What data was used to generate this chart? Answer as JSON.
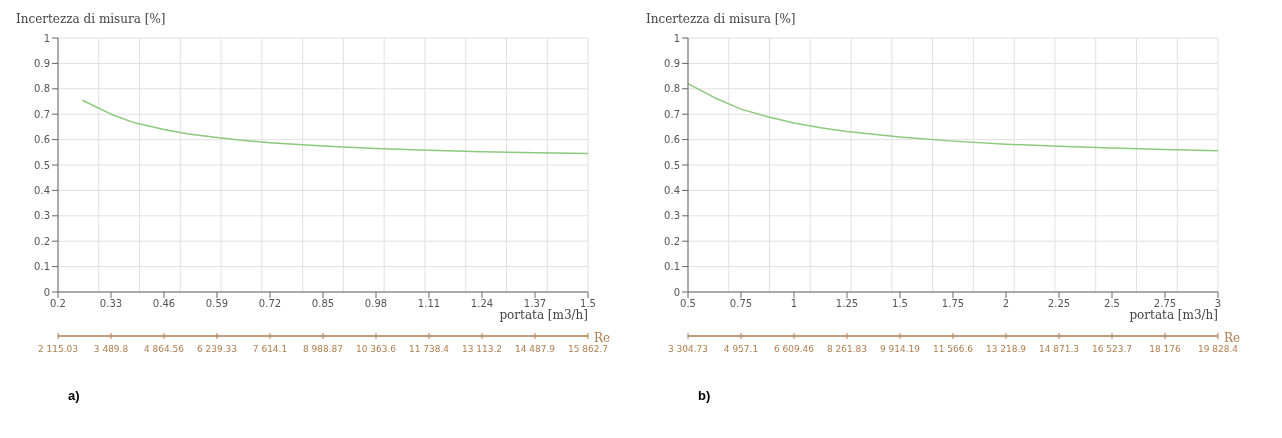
{
  "chart_data": [
    {
      "type": "line",
      "ylabel": "Incertezza di misura [%]",
      "xlabel": "portata [m3/h]",
      "x2label": "Re",
      "annotations": [
        "a)"
      ],
      "grid": true,
      "marker": "none",
      "line_style": "solid",
      "x": [
        0.26,
        0.33,
        0.39,
        0.46,
        0.52,
        0.59,
        0.65,
        0.72,
        0.85,
        0.98,
        1.11,
        1.24,
        1.37,
        1.5
      ],
      "series": [
        {
          "color": "#8cc97c",
          "values": [
            0.755,
            0.7,
            0.665,
            0.64,
            0.622,
            0.608,
            0.597,
            0.588,
            0.575,
            0.565,
            0.558,
            0.552,
            0.548,
            0.545
          ]
        }
      ],
      "xlim": [
        0.2,
        1.5
      ],
      "xticks": [
        0.2,
        0.33,
        0.46,
        0.59,
        0.72,
        0.85,
        0.98,
        1.11,
        1.24,
        1.37,
        1.5
      ],
      "ylim": [
        0,
        1
      ],
      "yticks": [
        0,
        0.1,
        0.2,
        0.3,
        0.4,
        0.5,
        0.6,
        0.7,
        0.8,
        0.9,
        1
      ],
      "x2lim": [
        2115.03,
        15862.7
      ],
      "x2ticks": [
        {
          "value": 2115.03,
          "label": "2 115.03"
        },
        {
          "value": 3489.8,
          "label": "3 489.8"
        },
        {
          "value": 4864.56,
          "label": "4 864.56"
        },
        {
          "value": 6239.33,
          "label": "6 239.33"
        },
        {
          "value": 7614.1,
          "label": "7 614.1"
        },
        {
          "value": 8988.87,
          "label": "8 988.87"
        },
        {
          "value": 10363.6,
          "label": "10 363.6"
        },
        {
          "value": 11738.4,
          "label": "11 738.4"
        },
        {
          "value": 13113.2,
          "label": "13 113.2"
        },
        {
          "value": 14487.9,
          "label": "14 487.9"
        },
        {
          "value": 15862.7,
          "label": "15 862.7"
        }
      ]
    },
    {
      "type": "line",
      "ylabel": "Incertezza di misura [%]",
      "xlabel": "portata [m3/h]",
      "x2label": "Re",
      "annotations": [
        "b)"
      ],
      "grid": true,
      "marker": "none",
      "line_style": "solid",
      "x": [
        0.5,
        0.625,
        0.75,
        0.875,
        1,
        1.125,
        1.25,
        1.5,
        1.75,
        2,
        2.25,
        2.5,
        2.75,
        3
      ],
      "series": [
        {
          "color": "#8cc97c",
          "values": [
            0.82,
            0.765,
            0.72,
            0.69,
            0.665,
            0.647,
            0.632,
            0.61,
            0.594,
            0.582,
            0.574,
            0.567,
            0.561,
            0.556
          ]
        }
      ],
      "xlim": [
        0.5,
        3
      ],
      "xticks": [
        0.5,
        0.75,
        1,
        1.25,
        1.5,
        1.75,
        2,
        2.25,
        2.5,
        2.75,
        3
      ],
      "ylim": [
        0,
        1
      ],
      "yticks": [
        0,
        0.1,
        0.2,
        0.3,
        0.4,
        0.5,
        0.6,
        0.7,
        0.8,
        0.9,
        1
      ],
      "x2lim": [
        3304.73,
        19828.4
      ],
      "x2ticks": [
        {
          "value": 3304.73,
          "label": "3 304.73"
        },
        {
          "value": 4957.1,
          "label": "4 957.1"
        },
        {
          "value": 6609.46,
          "label": "6 609.46"
        },
        {
          "value": 8261.83,
          "label": "8 261.83"
        },
        {
          "value": 9914.19,
          "label": "9 914.19"
        },
        {
          "value": 11566.6,
          "label": "11 566.6"
        },
        {
          "value": 13218.9,
          "label": "13 218.9"
        },
        {
          "value": 14871.3,
          "label": "14 871.3"
        },
        {
          "value": 16523.7,
          "label": "16 523.7"
        },
        {
          "value": 18176,
          "label": "18 176"
        },
        {
          "value": 19828.4,
          "label": "19 828.4"
        }
      ]
    }
  ]
}
